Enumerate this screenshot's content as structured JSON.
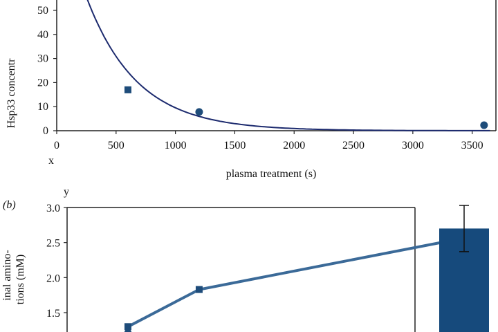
{
  "chart_data": [
    {
      "type": "scatter",
      "panel_label": "",
      "xlabel": "plasma treatment (s)",
      "ylabel": "Hsp33 concentr",
      "x_axis_marker": "x",
      "xlim": [
        0,
        3700
      ],
      "ylim": [
        0,
        55
      ],
      "x_ticks": [
        "0",
        "500",
        "1000",
        "1500",
        "2000",
        "2500",
        "3000",
        "3500"
      ],
      "y_ticks": [
        "0",
        "10",
        "20",
        "30",
        "40",
        "50"
      ],
      "series": [
        {
          "marker": "square",
          "x": [
            600
          ],
          "y": [
            17
          ]
        },
        {
          "marker": "circle",
          "x": [
            1200,
            3600
          ],
          "y": [
            7.8,
            2.3
          ]
        }
      ],
      "fit_curve": {
        "type": "exponential",
        "y0": 100,
        "decay_rate": 0.00235
      },
      "grid": false,
      "colors": {
        "marker": "#1e4c7a",
        "curve": "#1c2a6e",
        "axis": "#222222"
      }
    },
    {
      "type": "line",
      "panel_label": "(b)",
      "y_axis_marker": "y",
      "ylabel_lines": [
        "inal amino-",
        "tions (mM)"
      ],
      "ylim": [
        1.0,
        3.0
      ],
      "y_ticks": [
        "3.0",
        "2.5",
        "2.0",
        "1.5"
      ],
      "series": [
        {
          "marker": "square",
          "x": [
            600,
            1200,
            3600
          ],
          "y": [
            1.3,
            1.83,
            2.62
          ]
        }
      ],
      "low_marker": {
        "x": 600,
        "y": 1.26
      },
      "side_bar": {
        "value": 2.7,
        "error": 0.33
      },
      "colors": {
        "line": "#3b6a98",
        "marker": "#1e4c7a",
        "bar": "#164a7c",
        "axis": "#222222"
      }
    }
  ]
}
